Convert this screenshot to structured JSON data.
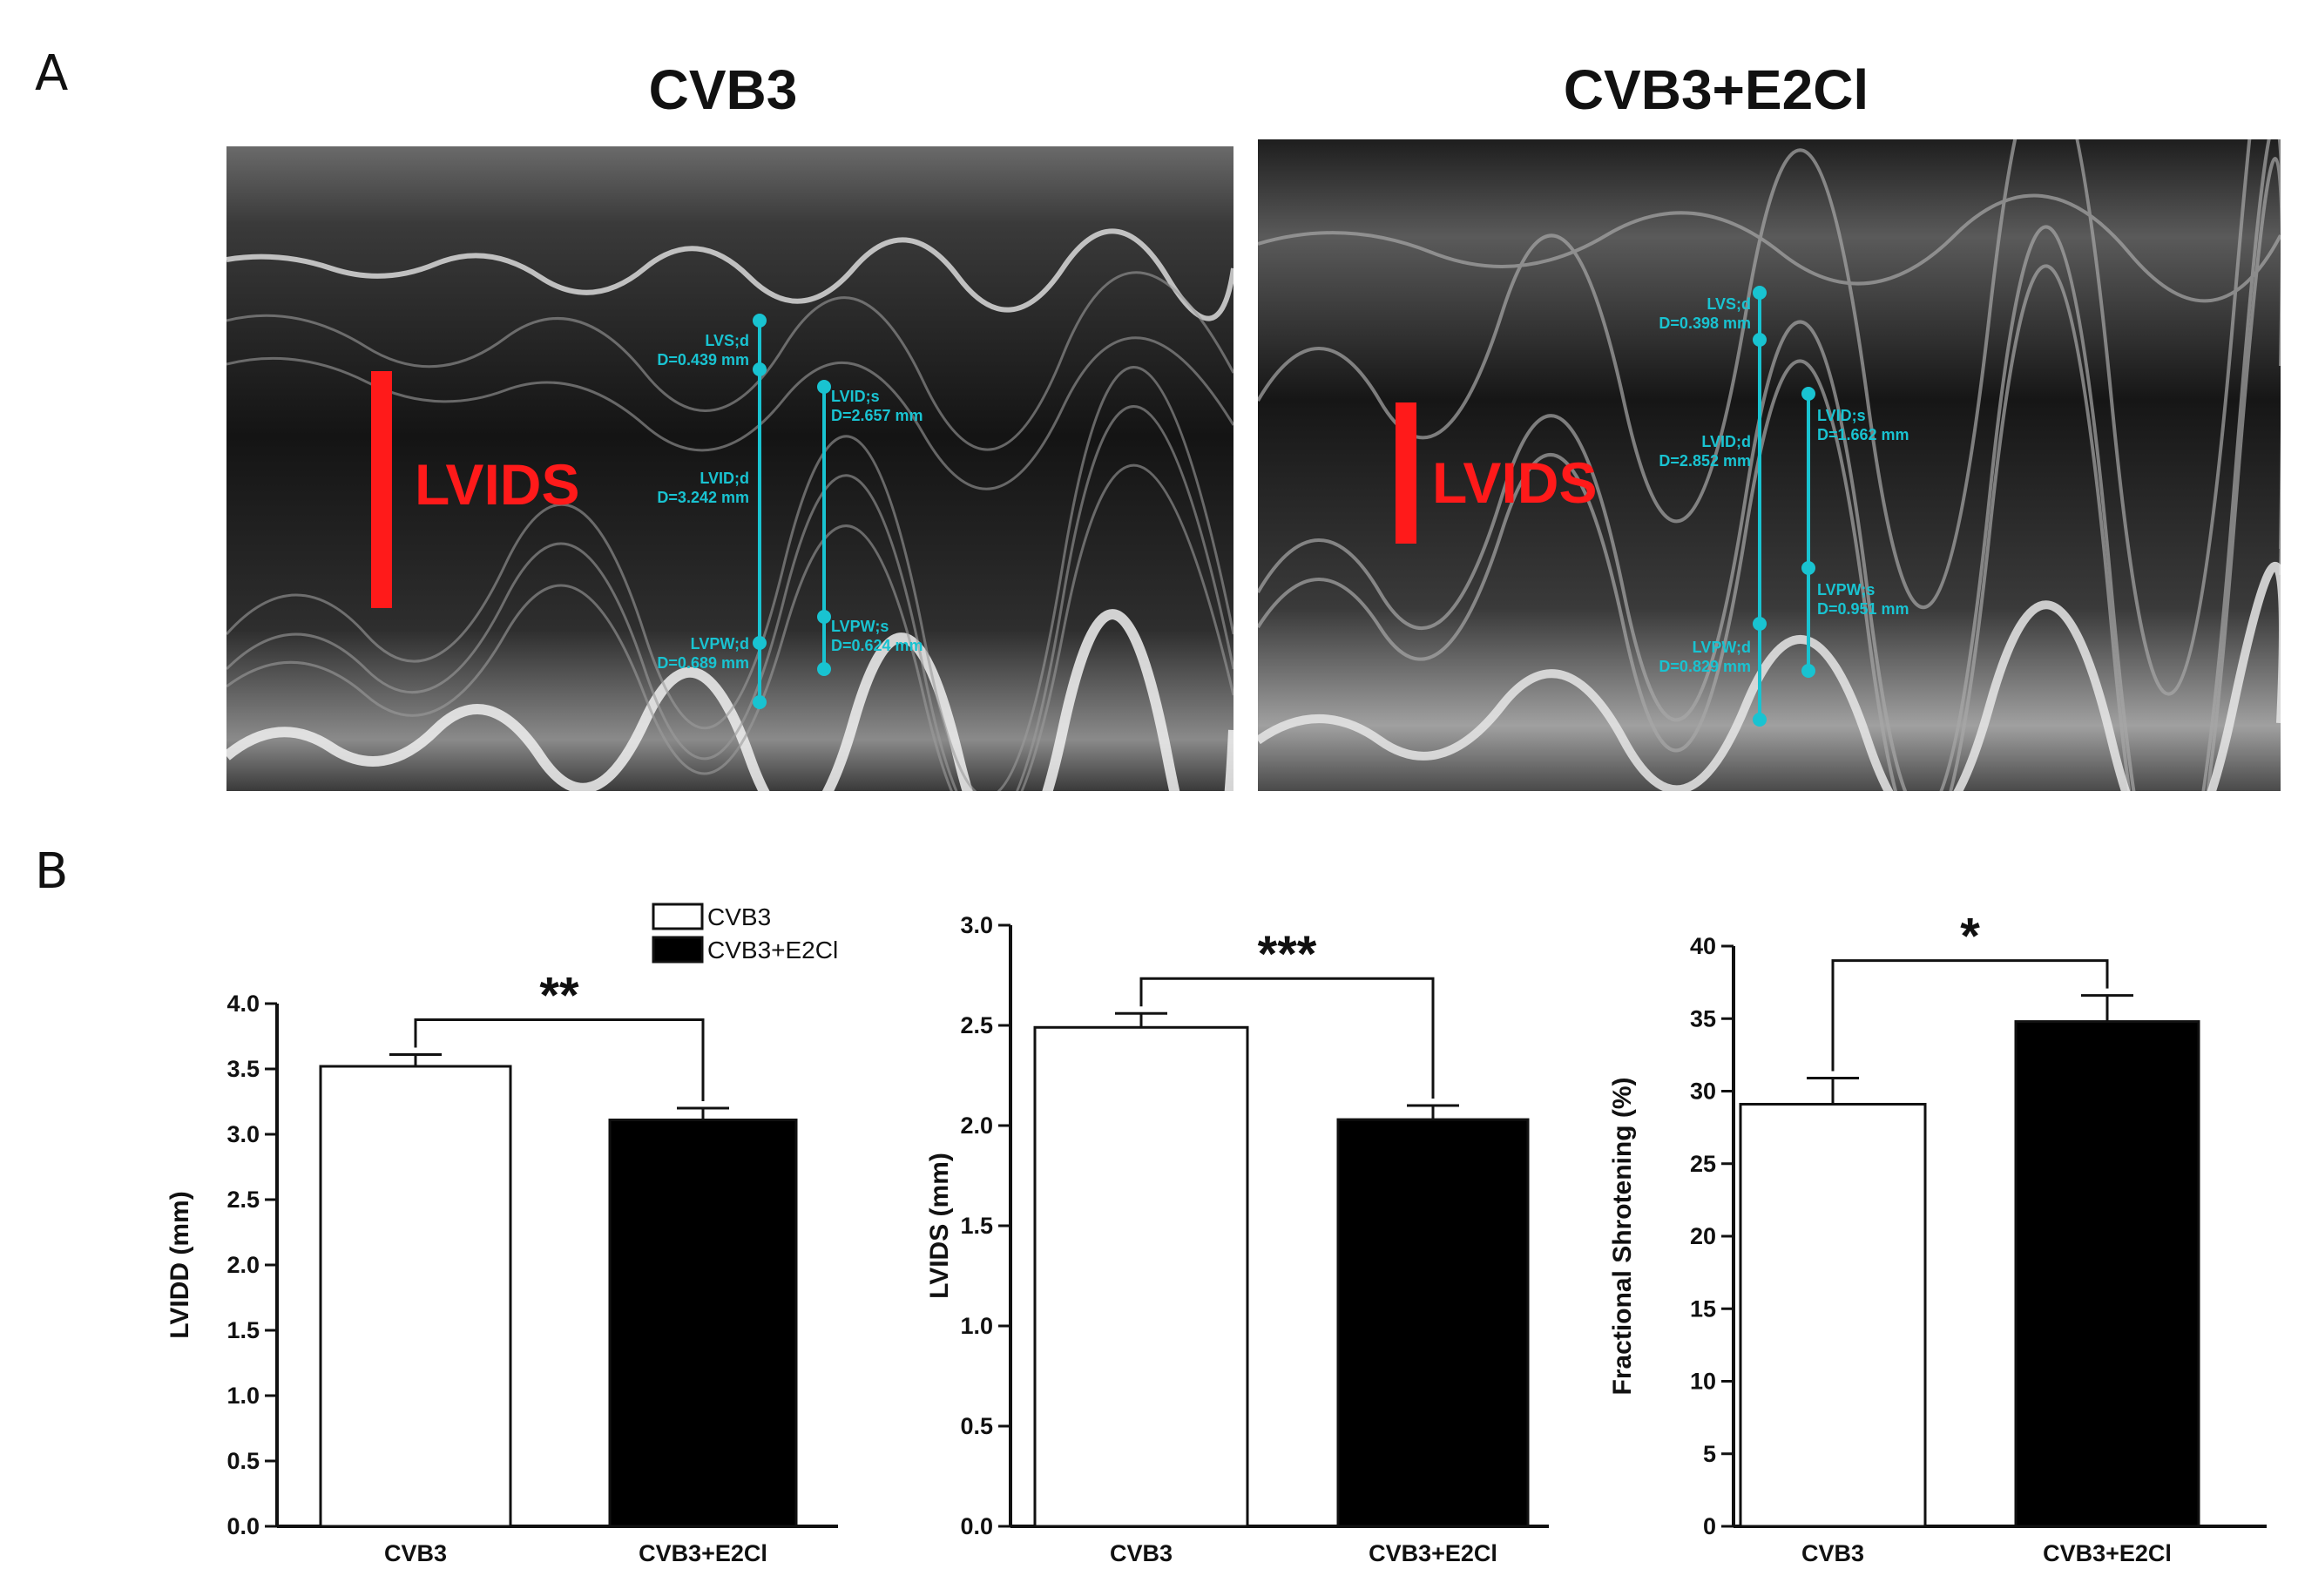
{
  "panels": {
    "a_label": "A",
    "b_label": "B"
  },
  "echo": {
    "left": {
      "title": "CVB3",
      "tag": "LVIDS",
      "measurements": [
        {
          "name": "LVS;d",
          "value": "D=0.439 mm"
        },
        {
          "name": "LVID;d",
          "value": "D=3.242 mm"
        },
        {
          "name": "LVPW;d",
          "value": "D=0.689 mm"
        },
        {
          "name": "LVID;s",
          "value": "D=2.657 mm"
        },
        {
          "name": "LVPW;s",
          "value": "D=0.624 mm"
        }
      ]
    },
    "right": {
      "title": "CVB3+E2Cl",
      "tag": "LVIDS",
      "measurements": [
        {
          "name": "LVS;d",
          "value": "D=0.398 mm"
        },
        {
          "name": "LVID;d",
          "value": "D=2.852 mm"
        },
        {
          "name": "LVPW;d",
          "value": "D=0.829 mm"
        },
        {
          "name": "LVID;s",
          "value": "D=1.662 mm"
        },
        {
          "name": "LVPW;s",
          "value": "D=0.951 mm"
        }
      ]
    }
  },
  "colors": {
    "measure": "#19c3d1",
    "tag": "#ff1a1a",
    "bar_cvb3": "#ffffff",
    "bar_e2cl": "#000000"
  },
  "legend": [
    {
      "label": "CVB3",
      "fill": "#ffffff"
    },
    {
      "label": "CVB3+E2Cl",
      "fill": "#000000"
    }
  ],
  "chart_data": [
    {
      "type": "bar",
      "title": "",
      "categories": [
        "CVB3",
        "CVB3+E2Cl"
      ],
      "values": [
        3.52,
        3.11
      ],
      "errors": [
        0.09,
        0.09
      ],
      "ylabel": "LVIDD (mm)",
      "ylim": [
        0,
        4.0
      ],
      "yticks": [
        "0.0",
        "0.5",
        "1.0",
        "1.5",
        "2.0",
        "2.5",
        "3.0",
        "3.5",
        "4.0"
      ],
      "significance": "**"
    },
    {
      "type": "bar",
      "title": "",
      "categories": [
        "CVB3",
        "CVB3+E2Cl"
      ],
      "values": [
        2.49,
        2.03
      ],
      "errors": [
        0.07,
        0.07
      ],
      "ylabel": "LVIDS (mm)",
      "ylim": [
        0,
        3.0
      ],
      "yticks": [
        "0.0",
        "0.5",
        "1.0",
        "1.5",
        "2.0",
        "2.5",
        "3.0"
      ],
      "significance": "***"
    },
    {
      "type": "bar",
      "title": "",
      "categories": [
        "CVB3",
        "CVB3+E2Cl"
      ],
      "values": [
        29.1,
        34.8
      ],
      "errors": [
        1.8,
        1.8
      ],
      "ylabel": "Fractional Shrotening (%)",
      "ylim": [
        0,
        40
      ],
      "yticks": [
        "0",
        "5",
        "10",
        "15",
        "20",
        "25",
        "30",
        "35",
        "40"
      ],
      "significance": "*"
    }
  ]
}
